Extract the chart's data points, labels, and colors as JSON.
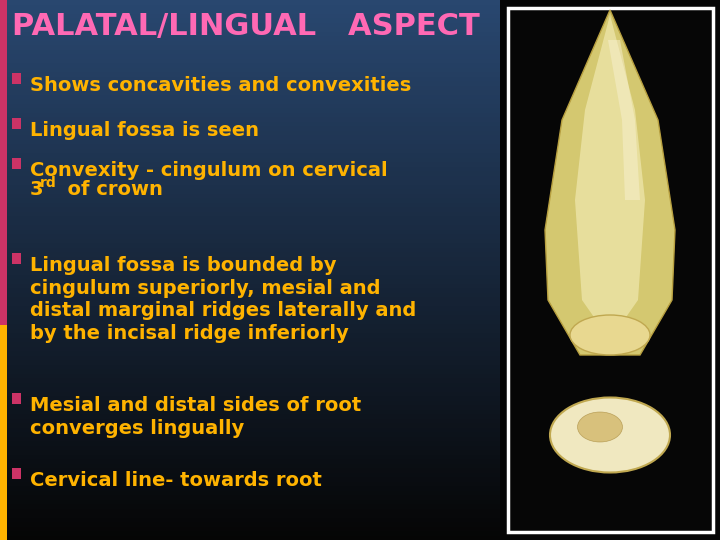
{
  "title": "PALATAL/LINGUAL   ASPECT",
  "title_color": "#FF69B4",
  "title_fontsize": 22,
  "bullet_color": "#FFB300",
  "bullet_fontsize": 14,
  "bg_left_color": "#000000",
  "bg_gradient_bottom": "#2a4a70",
  "left_bar_top_color": "#CC3366",
  "left_bar_bottom_color": "#FFB300",
  "bullets": [
    "Shows concavities and convexities",
    "Lingual fossa is seen",
    "Convexity - cingulum on cervical\n3rd  of crown",
    "Lingual fossa is bounded by\ncingulum superiorly, mesial and\ndistal marginal ridges laterally and\nby the incisal ridge inferiorly",
    "Mesial and distal sides of root\nconverges lingually",
    "Cervical line- towards root"
  ],
  "bullet_markers": [
    "#CC3366",
    "#CC3366",
    "#CC3366",
    "#CC3366",
    "#CC3366",
    "#CC3366"
  ],
  "image_border_color": "#ffffff",
  "tooth_upper_color": "#E8D88A",
  "tooth_lower_color": "#F0E8C0",
  "tooth_shadow_color": "#C8A850",
  "black_bg": "#060606"
}
